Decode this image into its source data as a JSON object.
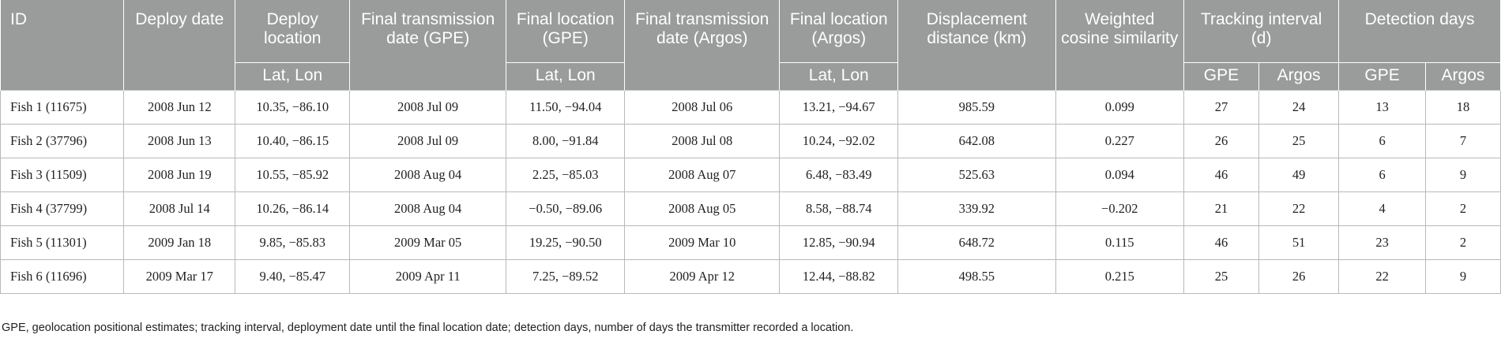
{
  "headers": {
    "id": "ID",
    "deploy_date": "Deploy date",
    "deploy_location": "Deploy location",
    "final_tx_gpe": "Final transmission date (GPE)",
    "final_loc_gpe": "Final location (GPE)",
    "final_tx_argos": "Final transmission date (Argos)",
    "final_loc_argos": "Final location (Argos)",
    "displacement": "Displacement distance (km)",
    "cosine": "Weighted cosine similarity",
    "tracking": "Tracking interval (d)",
    "detection": "Detection days",
    "latlon": "Lat, Lon",
    "gpe": "GPE",
    "argos": "Argos"
  },
  "rows": [
    [
      "Fish 1 (11675)",
      "2008 Jun 12",
      "10.35, −86.10",
      "2008 Jul 09",
      "11.50, −94.04",
      "2008 Jul 06",
      "13.21, −94.67",
      "985.59",
      "0.099",
      "27",
      "24",
      "13",
      "18"
    ],
    [
      "Fish 2 (37796)",
      "2008 Jun 13",
      "10.40, −86.15",
      "2008 Jul 09",
      "8.00, −91.84",
      "2008 Jul 08",
      "10.24, −92.02",
      "642.08",
      "0.227",
      "26",
      "25",
      "6",
      "7"
    ],
    [
      "Fish 3 (11509)",
      "2008 Jun 19",
      "10.55, −85.92",
      "2008 Aug 04",
      "2.25, −85.03",
      "2008 Aug 07",
      "6.48, −83.49",
      "525.63",
      "0.094",
      "46",
      "49",
      "6",
      "9"
    ],
    [
      "Fish 4 (37799)",
      "2008 Jul 14",
      "10.26, −86.14",
      "2008 Aug 04",
      "−0.50, −89.06",
      "2008 Aug 05",
      "8.58, −88.74",
      "339.92",
      "−0.202",
      "21",
      "22",
      "4",
      "2"
    ],
    [
      "Fish 5 (11301)",
      "2009 Jan 18",
      "9.85, −85.83",
      "2009 Mar 05",
      "19.25, −90.50",
      "2009 Mar 10",
      "12.85, −90.94",
      "648.72",
      "0.115",
      "46",
      "51",
      "23",
      "2"
    ],
    [
      "Fish 6 (11696)",
      "2009 Mar 17",
      "9.40, −85.47",
      "2009 Apr 11",
      "7.25, −89.52",
      "2009 Apr 12",
      "12.44, −88.82",
      "498.55",
      "0.215",
      "25",
      "26",
      "22",
      "9"
    ]
  ],
  "caption": "GPE, geolocation positional estimates; tracking interval, deployment date until the final location date; detection days, number of days the transmitter recorded a location."
}
